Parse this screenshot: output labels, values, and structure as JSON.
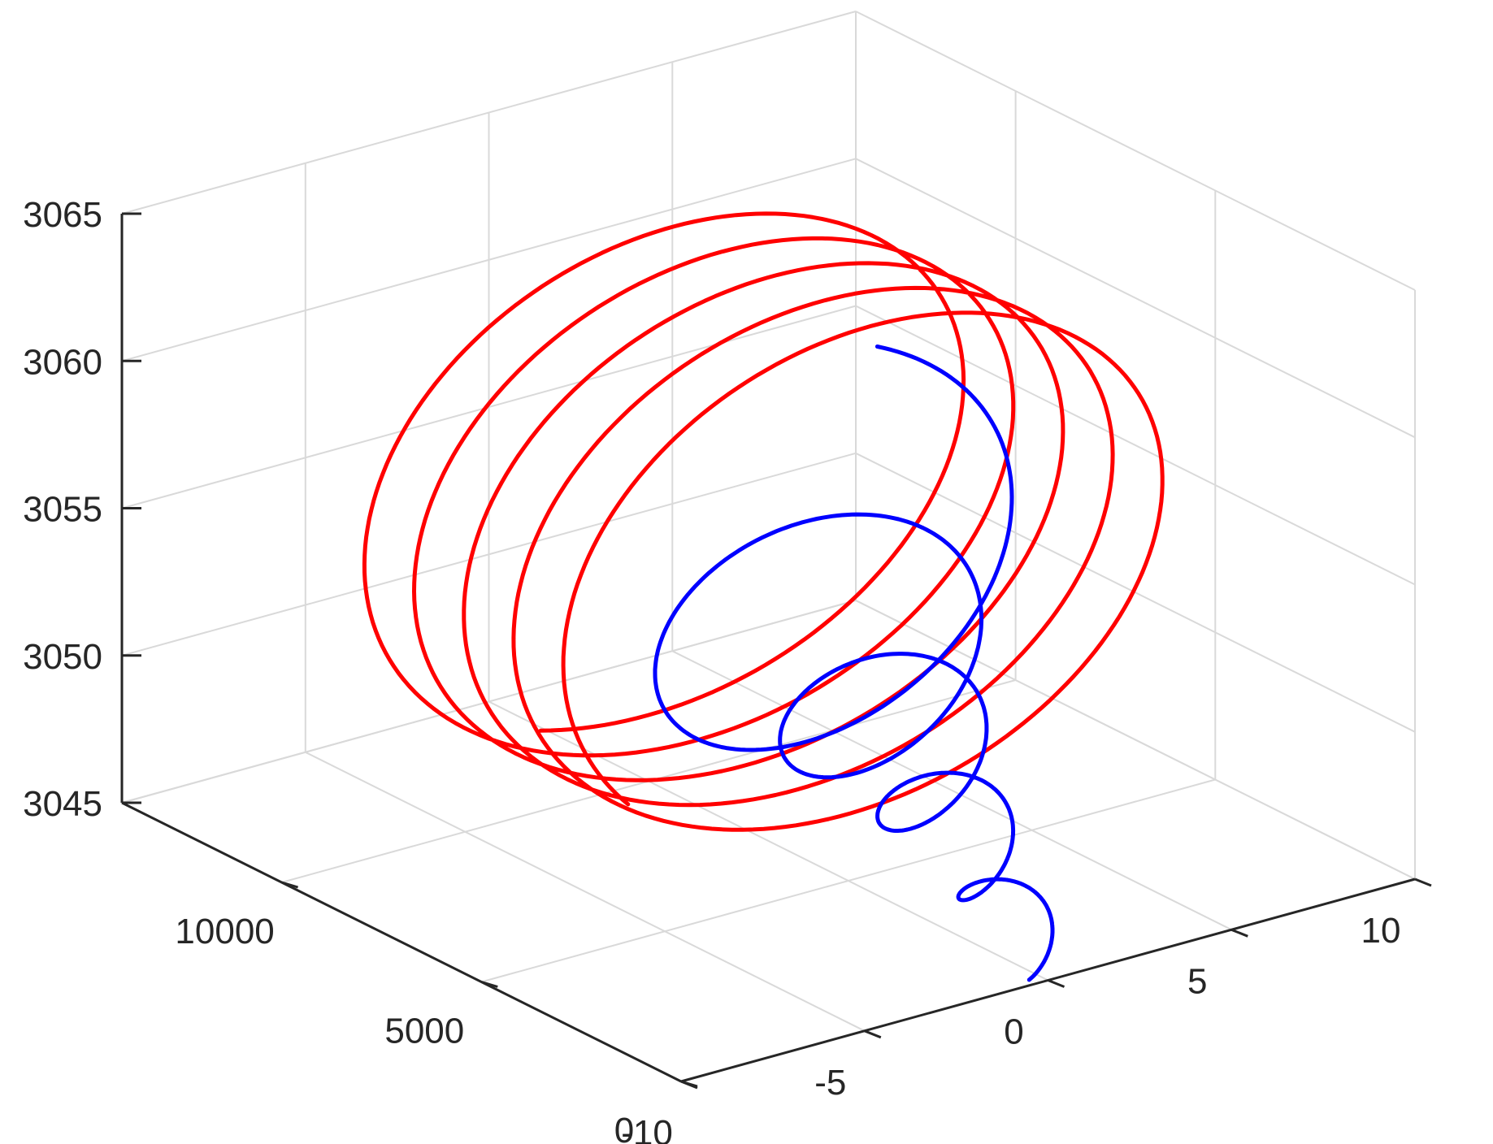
{
  "chart_data": {
    "type": "line",
    "projection": "3d",
    "grid": true,
    "xlabel": "",
    "ylabel": "",
    "zlabel": "",
    "xlim": [
      -10,
      10
    ],
    "ylim": [
      0,
      14000
    ],
    "zlim": [
      3045,
      3065
    ],
    "x_ticks": [
      -10,
      -5,
      0,
      5,
      10
    ],
    "y_ticks": [
      0,
      5000,
      10000
    ],
    "z_ticks": [
      3045,
      3050,
      3055,
      3060,
      3065
    ],
    "x_tick_labels": [
      "-10",
      "-5",
      "0",
      "5",
      "10"
    ],
    "y_tick_labels": [
      "0",
      "5000",
      "10000"
    ],
    "z_tick_labels": [
      "3045",
      "3050",
      "3055",
      "3060",
      "3065"
    ],
    "series": [
      {
        "color": "#ff0000",
        "description": "helix of ~5 turns, amplitude ~8.5 in x and z",
        "params": {
          "y_start": 4200,
          "y_end": 10300,
          "turns": 4.9,
          "amplitude_x": 8.5,
          "amplitude_z": 8.5,
          "z_center": 3055.5
        }
      },
      {
        "color": "#0000ff",
        "description": "decaying spiral from large loop to small tail",
        "params": {
          "y_start": 6600,
          "y_end": 0,
          "turns": 4.6,
          "amplitude_start": 6.5,
          "amplitude_end": 0.6,
          "z_center_start": 3055.2,
          "z_center_end": 3045.5
        }
      }
    ]
  }
}
